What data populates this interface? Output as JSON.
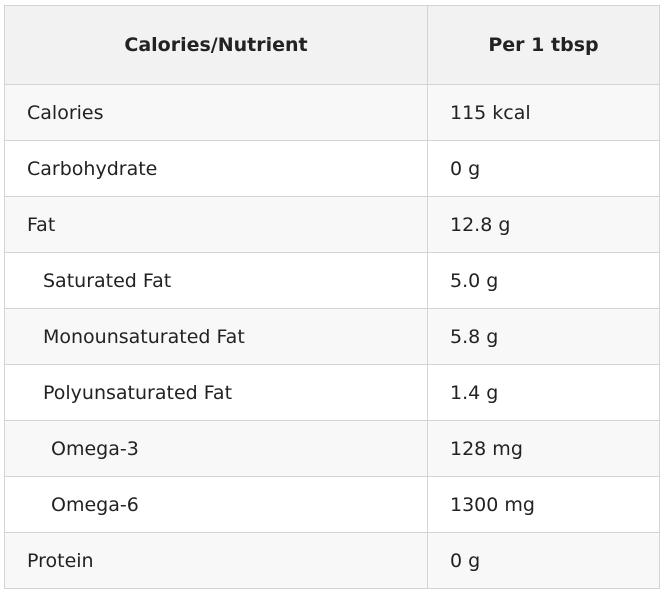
{
  "table": {
    "header": [
      "Calories/Nutrient",
      "Per 1 tbsp"
    ],
    "rows": [
      [
        "Calories",
        "115 kcal"
      ],
      [
        "Carbohydrate",
        "0 g"
      ],
      [
        "Fat",
        "12.8 g"
      ],
      [
        "Saturated Fat",
        "5.0 g"
      ],
      [
        "Monounsaturated Fat",
        "5.8 g"
      ],
      [
        "Polyunsaturated Fat",
        "1.4 g"
      ],
      [
        "Omega-3",
        "128 mg"
      ],
      [
        "Omega-6",
        "1300 mg"
      ],
      [
        "Protein",
        "0 g"
      ]
    ]
  }
}
